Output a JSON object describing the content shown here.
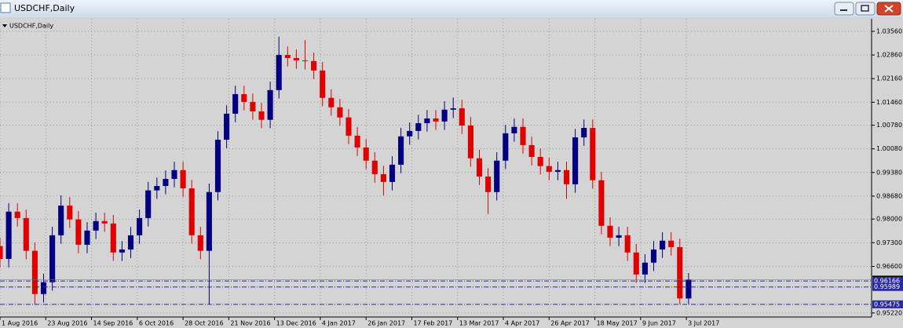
{
  "window": {
    "title": "USDCHF,Daily"
  },
  "chart_data": {
    "type": "candlestick",
    "title": "USDCHF,Daily",
    "open": [
      0.972,
      0.9682,
      0.9822,
      0.9803,
      0.9706,
      0.9578,
      0.9613,
      0.9752,
      0.984,
      0.9799,
      0.9724,
      0.9766,
      0.9794,
      0.9787,
      0.9701,
      0.971,
      0.9752,
      0.9803,
      0.9885,
      0.9898,
      0.9919,
      0.9945,
      0.9891,
      0.9752,
      0.9706,
      0.988,
      1.0035,
      1.0112,
      1.017,
      1.0147,
      1.0119,
      1.0094,
      1.0182,
      1.0286,
      1.0277,
      1.027,
      1.0268,
      1.024,
      1.0159,
      1.0131,
      1.0101,
      1.0047,
      1.0012,
      0.9973,
      0.9933,
      0.991,
      0.9961,
      1.0045,
      1.0061,
      1.0084,
      1.0098,
      1.0089,
      1.0124,
      1.0128,
      1.0077,
      0.998,
      0.9926,
      0.988,
      0.9973,
      1.0054,
      1.0073,
      1.0019,
      0.9984,
      0.9957,
      0.994,
      0.9945,
      0.9903,
      1.0042,
      1.007,
      0.9915,
      0.978,
      0.9745,
      0.9752,
      0.9701,
      0.9636,
      0.9671,
      0.971,
      0.9736,
      0.9717,
      0.9565
    ],
    "high": [
      0.9745,
      0.9847,
      0.9847,
      0.9828,
      0.9731,
      0.9638,
      0.9777,
      0.987,
      0.9865,
      0.9824,
      0.9791,
      0.9819,
      0.9819,
      0.9812,
      0.9735,
      0.9777,
      0.9828,
      0.991,
      0.9923,
      0.9944,
      0.997,
      0.997,
      0.9916,
      0.9777,
      0.9905,
      1.006,
      1.0137,
      1.0195,
      1.0195,
      1.0172,
      1.0144,
      1.0207,
      1.034,
      1.0311,
      1.0302,
      1.033,
      1.0293,
      1.0265,
      1.0184,
      1.0156,
      1.0126,
      1.0072,
      1.0037,
      0.9998,
      0.9958,
      0.9986,
      1.007,
      1.0086,
      1.0109,
      1.0123,
      1.0123,
      1.0149,
      1.016,
      1.0153,
      1.0102,
      1.0005,
      0.9951,
      0.9998,
      1.0079,
      1.0098,
      1.0098,
      1.0044,
      1.0009,
      0.9982,
      0.997,
      0.997,
      1.0067,
      1.0095,
      1.0095,
      0.994,
      0.9805,
      0.9777,
      0.9777,
      0.9726,
      0.9696,
      0.9735,
      0.9761,
      0.9761,
      0.9742,
      0.964
    ],
    "low": [
      0.9657,
      0.9657,
      0.9778,
      0.9681,
      0.9548,
      0.9553,
      0.9588,
      0.9727,
      0.9774,
      0.9699,
      0.9699,
      0.9741,
      0.9762,
      0.9676,
      0.9676,
      0.9685,
      0.9727,
      0.9778,
      0.986,
      0.9873,
      0.9894,
      0.9866,
      0.9727,
      0.9681,
      0.9548,
      0.9855,
      1.001,
      1.0087,
      1.0122,
      1.0094,
      1.0069,
      1.0069,
      1.0157,
      1.0252,
      1.0245,
      1.0243,
      1.0215,
      1.0134,
      1.0106,
      1.0076,
      1.0022,
      0.9987,
      0.9948,
      0.9908,
      0.987,
      0.9885,
      0.9936,
      1.002,
      1.0036,
      1.0059,
      1.0064,
      1.0064,
      1.0099,
      1.0052,
      0.9955,
      0.9901,
      0.9815,
      0.9855,
      0.9948,
      1.0029,
      0.9994,
      0.9959,
      0.9932,
      0.9915,
      0.9915,
      0.986,
      0.9878,
      1.0017,
      0.989,
      0.9755,
      0.972,
      0.972,
      0.9676,
      0.9611,
      0.9611,
      0.9646,
      0.9685,
      0.9692,
      0.9548,
      0.9548
    ],
    "close": [
      0.9682,
      0.9822,
      0.9803,
      0.9706,
      0.9578,
      0.9613,
      0.9752,
      0.984,
      0.9799,
      0.9724,
      0.9766,
      0.9794,
      0.9787,
      0.9701,
      0.971,
      0.9752,
      0.9803,
      0.9885,
      0.9898,
      0.9919,
      0.9945,
      0.9891,
      0.9752,
      0.9706,
      0.988,
      1.0035,
      1.0112,
      1.017,
      1.0147,
      1.0119,
      1.0094,
      1.0182,
      1.0286,
      1.0277,
      1.027,
      1.0268,
      1.024,
      1.0159,
      1.0131,
      1.0101,
      1.0047,
      1.0012,
      0.9973,
      0.9933,
      0.991,
      0.9961,
      1.0045,
      1.0061,
      1.0084,
      1.0098,
      1.0089,
      1.0124,
      1.0128,
      1.0077,
      0.998,
      0.9926,
      0.988,
      0.9973,
      1.0054,
      1.0073,
      1.0019,
      0.9984,
      0.9957,
      0.994,
      0.9945,
      0.9903,
      1.0042,
      1.007,
      0.9915,
      0.978,
      0.9745,
      0.9752,
      0.9701,
      0.9636,
      0.9671,
      0.971,
      0.9736,
      0.9717,
      0.9565,
      0.96207
    ],
    "up_color": "#000080",
    "down_color": "#e00000",
    "xlim": [
      0,
      100
    ],
    "xticks": [
      {
        "value": 0,
        "label": "1 Aug 2016"
      },
      {
        "value": 5.25,
        "label": "23 Aug 2016"
      },
      {
        "value": 10.5,
        "label": "14 Sep 2016"
      },
      {
        "value": 15.75,
        "label": "6 Oct 2016"
      },
      {
        "value": 21,
        "label": "28 Oct 2016"
      },
      {
        "value": 26.25,
        "label": "21 Nov 2016"
      },
      {
        "value": 31.5,
        "label": "13 Dec 2016"
      },
      {
        "value": 36.75,
        "label": "4 Jan 2017"
      },
      {
        "value": 42,
        "label": "26 Jan 2017"
      },
      {
        "value": 47.25,
        "label": "17 Feb 2017"
      },
      {
        "value": 52.5,
        "label": "13 Mar 2017"
      },
      {
        "value": 57.75,
        "label": "4 Apr 2017"
      },
      {
        "value": 63,
        "label": "26 Apr 2017"
      },
      {
        "value": 68.25,
        "label": "18 May 2017"
      },
      {
        "value": 73.5,
        "label": "9 Jun 2017"
      },
      {
        "value": 78.75,
        "label": "3 Jul 2017"
      }
    ],
    "ylim": [
      0.951,
      1.0393
    ],
    "yticks": [
      {
        "value": 1.0356,
        "label": "1.03560"
      },
      {
        "value": 1.0286,
        "label": "1.02860"
      },
      {
        "value": 1.0216,
        "label": "1.02160"
      },
      {
        "value": 1.0146,
        "label": "1.01460"
      },
      {
        "value": 1.0078,
        "label": "1.00780"
      },
      {
        "value": 1.0008,
        "label": "1.00080"
      },
      {
        "value": 0.9938,
        "label": "0.99380"
      },
      {
        "value": 0.9868,
        "label": "0.98680"
      },
      {
        "value": 0.98,
        "label": "0.98000"
      },
      {
        "value": 0.973,
        "label": "0.97300"
      },
      {
        "value": 0.966,
        "label": "0.96600"
      },
      {
        "value": 0.9522,
        "label": "0.95220"
      }
    ],
    "grid": true,
    "bid": 0.96207,
    "hlines": [
      0.96166,
      0.95989,
      0.95475
    ],
    "hline_color": "#2a2aa0"
  }
}
